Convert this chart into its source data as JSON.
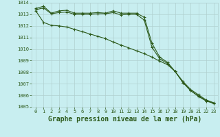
{
  "title": "Graphe pression niveau de la mer (hPa)",
  "background_color": "#c8eef0",
  "grid_color": "#b0d0d0",
  "line_color": "#2d5a1b",
  "x_values": [
    0,
    1,
    2,
    3,
    4,
    5,
    6,
    7,
    8,
    9,
    10,
    11,
    12,
    13,
    14,
    15,
    16,
    17,
    18,
    19,
    20,
    21,
    22,
    23
  ],
  "series1": [
    1013.5,
    1013.7,
    1013.1,
    1013.3,
    1013.35,
    1013.1,
    1013.1,
    1013.1,
    1013.15,
    1013.1,
    1013.3,
    1013.1,
    1013.1,
    1013.1,
    1012.75,
    1010.5,
    1009.3,
    1008.85,
    1008.05,
    1007.2,
    1006.5,
    1006.05,
    1005.6,
    1005.35
  ],
  "series2": [
    1013.3,
    1012.3,
    1012.05,
    1012.0,
    1011.9,
    1011.7,
    1011.5,
    1011.3,
    1011.1,
    1010.9,
    1010.6,
    1010.35,
    1010.1,
    1009.85,
    1009.6,
    1009.3,
    1008.95,
    1008.65,
    1008.05,
    1007.1,
    1006.4,
    1005.9,
    1005.5,
    1005.3
  ],
  "series3": [
    1013.4,
    1013.55,
    1013.05,
    1013.15,
    1013.2,
    1013.0,
    1013.0,
    1013.0,
    1013.05,
    1013.05,
    1013.15,
    1012.95,
    1013.0,
    1013.0,
    1012.5,
    1010.15,
    1009.15,
    1008.75,
    1008.05,
    1007.1,
    1006.4,
    1005.95,
    1005.55,
    1005.3
  ],
  "ylim": [
    1005,
    1014
  ],
  "yticks": [
    1005,
    1006,
    1007,
    1008,
    1009,
    1010,
    1011,
    1012,
    1013,
    1014
  ],
  "xticks": [
    0,
    1,
    2,
    3,
    4,
    5,
    6,
    7,
    8,
    9,
    10,
    11,
    12,
    13,
    14,
    15,
    16,
    17,
    18,
    19,
    20,
    21,
    22,
    23
  ],
  "marker": "+",
  "marker_size": 3.0,
  "line_width": 0.8,
  "title_fontsize": 7.0,
  "tick_fontsize": 5.0
}
